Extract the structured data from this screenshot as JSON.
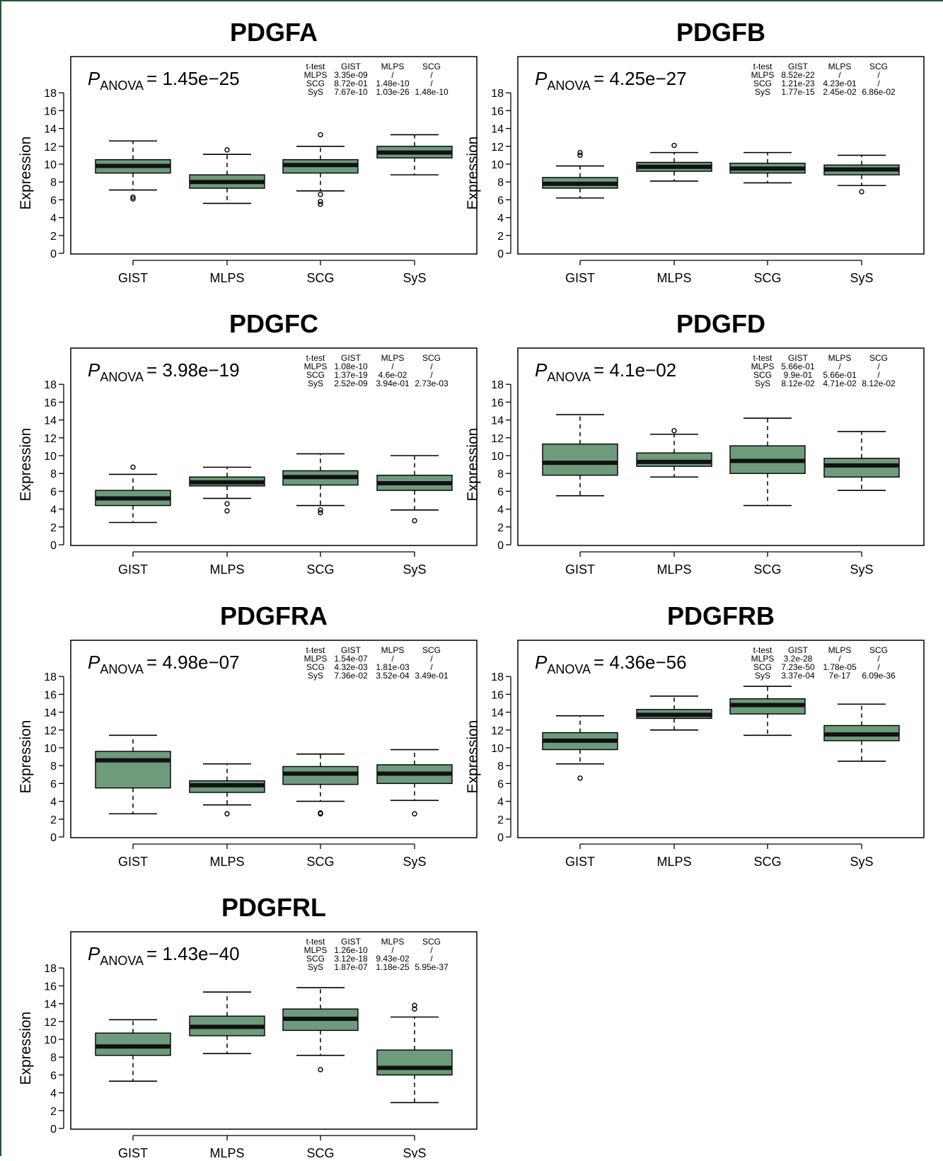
{
  "colors": {
    "box_fill": "#6e9b7b",
    "frame_border": "#1f5a35",
    "ink": "#000000"
  },
  "chart_data": [
    {
      "type": "boxplot",
      "title": "PDGFA",
      "ylabel": "Expression",
      "ylim": [
        0,
        18
      ],
      "yticks": [
        "0",
        "2",
        "4",
        "6",
        "8",
        "10",
        "12",
        "14",
        "16",
        "18"
      ],
      "categories": [
        "GIST",
        "MLPS",
        "SCG",
        "SyS"
      ],
      "anova_label": "ANOVA",
      "anova": "= 1.45e−25",
      "ttest": [
        [
          "t-test",
          "GIST",
          "MLPS",
          "SCG"
        ],
        [
          "MLPS",
          "3.35e-09",
          "/",
          "/"
        ],
        [
          "SCG",
          "8.72e-01",
          "1.48e-10",
          "/"
        ],
        [
          "SyS",
          "7.67e-10",
          "1.03e-26",
          "1.48e-10"
        ]
      ],
      "boxes": [
        {
          "min": 7.1,
          "q1": 9.0,
          "median": 9.8,
          "q3": 10.5,
          "max": 12.6,
          "outliers": [
            6.1,
            6.3
          ]
        },
        {
          "min": 5.6,
          "q1": 7.3,
          "median": 8.0,
          "q3": 8.8,
          "max": 11.1,
          "outliers": [
            11.6
          ]
        },
        {
          "min": 7.0,
          "q1": 9.0,
          "median": 9.9,
          "q3": 10.5,
          "max": 12.0,
          "outliers": [
            13.3,
            6.6,
            5.5,
            5.8
          ]
        },
        {
          "min": 8.8,
          "q1": 10.7,
          "median": 11.3,
          "q3": 12.0,
          "max": 13.3,
          "outliers": []
        }
      ]
    },
    {
      "type": "boxplot",
      "title": "PDGFB",
      "ylabel": "Expression",
      "ylim": [
        0,
        18
      ],
      "yticks": [
        "0",
        "2",
        "4",
        "6",
        "8",
        "10",
        "12",
        "14",
        "16",
        "18"
      ],
      "categories": [
        "GIST",
        "MLPS",
        "SCG",
        "SyS"
      ],
      "anova_label": "ANOVA",
      "anova": "= 4.25e−27",
      "ttest": [
        [
          "t-test",
          "GIST",
          "MLPS",
          "SCG"
        ],
        [
          "MLPS",
          "8.52e-22",
          "/",
          "/"
        ],
        [
          "SCG",
          "1.21e-23",
          "4.23e-01",
          "/"
        ],
        [
          "SyS",
          "1.77e-15",
          "2.45e-02",
          "6.86e-02"
        ]
      ],
      "boxes": [
        {
          "min": 6.2,
          "q1": 7.3,
          "median": 7.8,
          "q3": 8.5,
          "max": 9.8,
          "outliers": [
            11.0,
            11.3
          ]
        },
        {
          "min": 8.1,
          "q1": 9.2,
          "median": 9.7,
          "q3": 10.2,
          "max": 11.3,
          "outliers": [
            12.1
          ]
        },
        {
          "min": 7.9,
          "q1": 9.0,
          "median": 9.5,
          "q3": 10.1,
          "max": 11.3,
          "outliers": []
        },
        {
          "min": 7.6,
          "q1": 8.8,
          "median": 9.4,
          "q3": 9.9,
          "max": 11.0,
          "outliers": [
            6.9
          ]
        }
      ]
    },
    {
      "type": "boxplot",
      "title": "PDGFC",
      "ylabel": "Expression",
      "ylim": [
        0,
        18
      ],
      "yticks": [
        "0",
        "2",
        "4",
        "6",
        "8",
        "10",
        "12",
        "14",
        "16",
        "18"
      ],
      "categories": [
        "GIST",
        "MLPS",
        "SCG",
        "SyS"
      ],
      "anova_label": "ANOVA",
      "anova": "= 3.98e−19",
      "ttest": [
        [
          "t-test",
          "GIST",
          "MLPS",
          "SCG"
        ],
        [
          "MLPS",
          "1.08e-10",
          "/",
          "/"
        ],
        [
          "SCG",
          "1.37e-19",
          "4.6e-02",
          "/"
        ],
        [
          "SyS",
          "2.52e-09",
          "3.94e-01",
          "2.73e-03"
        ]
      ],
      "boxes": [
        {
          "min": 2.5,
          "q1": 4.4,
          "median": 5.2,
          "q3": 6.1,
          "max": 7.9,
          "outliers": [
            8.7
          ]
        },
        {
          "min": 5.2,
          "q1": 6.6,
          "median": 7.0,
          "q3": 7.6,
          "max": 8.7,
          "outliers": [
            4.6,
            3.8
          ]
        },
        {
          "min": 4.4,
          "q1": 6.7,
          "median": 7.6,
          "q3": 8.3,
          "max": 10.2,
          "outliers": [
            3.6,
            3.9
          ]
        },
        {
          "min": 3.9,
          "q1": 6.1,
          "median": 6.9,
          "q3": 7.8,
          "max": 10.0,
          "outliers": [
            2.7
          ]
        }
      ]
    },
    {
      "type": "boxplot",
      "title": "PDGFD",
      "ylabel": "Expression",
      "ylim": [
        0,
        18
      ],
      "yticks": [
        "0",
        "2",
        "4",
        "6",
        "8",
        "10",
        "12",
        "14",
        "16",
        "18"
      ],
      "categories": [
        "GIST",
        "MLPS",
        "SCG",
        "SyS"
      ],
      "anova_label": "ANOVA",
      "anova": "= 4.1e−02",
      "ttest": [
        [
          "t-test",
          "GIST",
          "MLPS",
          "SCG"
        ],
        [
          "MLPS",
          "5.66e-01",
          "/",
          "/"
        ],
        [
          "SCG",
          "9.9e-01",
          "5.66e-01",
          "/"
        ],
        [
          "SyS",
          "8.12e-02",
          "4.71e-02",
          "8.12e-02"
        ]
      ],
      "boxes": [
        {
          "min": 5.5,
          "q1": 7.8,
          "median": 9.2,
          "q3": 11.3,
          "max": 14.6,
          "outliers": []
        },
        {
          "min": 7.6,
          "q1": 8.8,
          "median": 9.3,
          "q3": 10.3,
          "max": 12.4,
          "outliers": [
            12.8
          ]
        },
        {
          "min": 4.4,
          "q1": 8.0,
          "median": 9.4,
          "q3": 11.1,
          "max": 14.2,
          "outliers": []
        },
        {
          "min": 6.1,
          "q1": 7.6,
          "median": 8.9,
          "q3": 9.7,
          "max": 12.7,
          "outliers": []
        }
      ]
    },
    {
      "type": "boxplot",
      "title": "PDGFRA",
      "ylabel": "Expression",
      "ylim": [
        0,
        18
      ],
      "yticks": [
        "0",
        "2",
        "4",
        "6",
        "8",
        "10",
        "12",
        "14",
        "16",
        "18"
      ],
      "categories": [
        "GIST",
        "MLPS",
        "SCG",
        "SyS"
      ],
      "anova_label": "ANOVA",
      "anova": "= 4.98e−07",
      "ttest": [
        [
          "t-test",
          "GIST",
          "MLPS",
          "SCG"
        ],
        [
          "MLPS",
          "1.54e-07",
          "/",
          "/"
        ],
        [
          "SCG",
          "4.32e-03",
          "1.81e-03",
          "/"
        ],
        [
          "SyS",
          "7.36e-02",
          "3.52e-04",
          "3.49e-01"
        ]
      ],
      "boxes": [
        {
          "min": 2.6,
          "q1": 5.5,
          "median": 8.6,
          "q3": 9.6,
          "max": 11.4,
          "outliers": []
        },
        {
          "min": 3.6,
          "q1": 5.0,
          "median": 5.8,
          "q3": 6.3,
          "max": 8.2,
          "outliers": [
            2.6
          ]
        },
        {
          "min": 4.0,
          "q1": 5.9,
          "median": 7.1,
          "q3": 7.9,
          "max": 9.3,
          "outliers": [
            2.6,
            2.7
          ]
        },
        {
          "min": 4.1,
          "q1": 6.0,
          "median": 7.1,
          "q3": 8.1,
          "max": 9.8,
          "outliers": [
            2.6
          ]
        }
      ]
    },
    {
      "type": "boxplot",
      "title": "PDGFRB",
      "ylabel": "Expression",
      "ylim": [
        0,
        18
      ],
      "yticks": [
        "0",
        "2",
        "4",
        "6",
        "8",
        "10",
        "12",
        "14",
        "16",
        "18"
      ],
      "categories": [
        "GIST",
        "MLPS",
        "SCG",
        "SyS"
      ],
      "anova_label": "ANOVA",
      "anova": "= 4.36e−56",
      "ttest": [
        [
          "t-test",
          "GIST",
          "MLPS",
          "SCG"
        ],
        [
          "MLPS",
          "3.2e-28",
          "/",
          "/"
        ],
        [
          "SCG",
          "7.23e-50",
          "1.78e-05",
          "/"
        ],
        [
          "SyS",
          "3.37e-04",
          "7e-17",
          "6.09e-36"
        ]
      ],
      "boxes": [
        {
          "min": 8.2,
          "q1": 9.8,
          "median": 10.8,
          "q3": 11.7,
          "max": 13.6,
          "outliers": [
            6.6
          ]
        },
        {
          "min": 12.0,
          "q1": 13.3,
          "median": 13.7,
          "q3": 14.3,
          "max": 15.8,
          "outliers": []
        },
        {
          "min": 11.4,
          "q1": 13.8,
          "median": 14.8,
          "q3": 15.5,
          "max": 16.9,
          "outliers": []
        },
        {
          "min": 8.5,
          "q1": 10.8,
          "median": 11.5,
          "q3": 12.5,
          "max": 14.9,
          "outliers": []
        }
      ]
    },
    {
      "type": "boxplot",
      "title": "PDGFRL",
      "ylabel": "Expression",
      "ylim": [
        0,
        18
      ],
      "yticks": [
        "0",
        "2",
        "4",
        "6",
        "8",
        "10",
        "12",
        "14",
        "16",
        "18"
      ],
      "categories": [
        "GIST",
        "MLPS",
        "SCG",
        "SyS"
      ],
      "anova_label": "ANOVA",
      "anova": "= 1.43e−40",
      "ttest": [
        [
          "t-test",
          "GIST",
          "MLPS",
          "SCG"
        ],
        [
          "MLPS",
          "1.26e-10",
          "/",
          "/"
        ],
        [
          "SCG",
          "3.12e-18",
          "9.43e-02",
          "/"
        ],
        [
          "SyS",
          "1.87e-07",
          "1.18e-25",
          "5.95e-37"
        ]
      ],
      "boxes": [
        {
          "min": 5.3,
          "q1": 8.2,
          "median": 9.2,
          "q3": 10.7,
          "max": 12.2,
          "outliers": []
        },
        {
          "min": 8.4,
          "q1": 10.4,
          "median": 11.4,
          "q3": 12.6,
          "max": 15.3,
          "outliers": []
        },
        {
          "min": 8.2,
          "q1": 11.0,
          "median": 12.3,
          "q3": 13.4,
          "max": 15.8,
          "outliers": [
            6.6
          ]
        },
        {
          "min": 2.9,
          "q1": 6.0,
          "median": 6.8,
          "q3": 8.8,
          "max": 12.5,
          "outliers": [
            13.4,
            13.8
          ]
        }
      ]
    }
  ]
}
